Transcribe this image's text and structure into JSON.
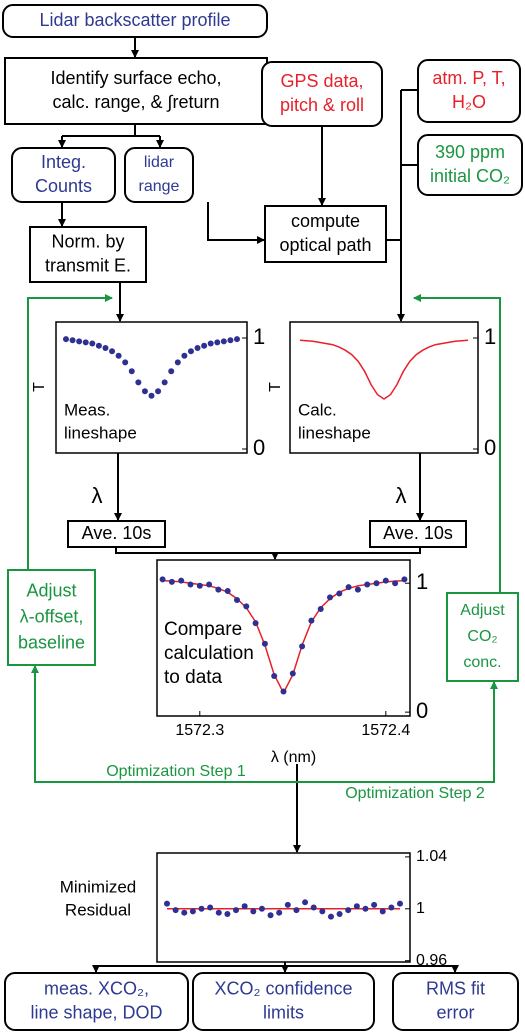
{
  "nodes": [
    {
      "lines": [
        "Lidar backscatter profile"
      ],
      "color": "#2e3a92"
    },
    {
      "lines": [
        "Identify surface echo,",
        "calc. range, & ∫return"
      ],
      "color": "#000000"
    },
    {
      "lines": [
        "GPS data,",
        "pitch & roll"
      ],
      "color": "#e8202a"
    },
    {
      "lines": [
        "atm. P, T,",
        "H₂O"
      ],
      "color": "#e8202a"
    },
    {
      "lines": [
        "390 ppm",
        "initial CO₂"
      ],
      "color": "#1a9641"
    },
    {
      "lines": [
        "Integ.",
        "Counts"
      ],
      "color": "#2e3a92"
    },
    {
      "lines": [
        "lidar",
        "range"
      ],
      "color": "#2e3a92"
    },
    {
      "lines": [
        "compute",
        "optical path"
      ],
      "color": "#000000"
    },
    {
      "lines": [
        "Norm. by",
        "transmit E."
      ],
      "color": "#000000"
    },
    {
      "lines": [
        "Ave. 10s"
      ],
      "color": "#000000"
    },
    {
      "lines": [
        "Ave. 10s"
      ],
      "color": "#000000"
    },
    {
      "lines": [
        "Adjust",
        "λ-offset,",
        "baseline"
      ],
      "color": "#1a9641",
      "border": "#1a9641"
    },
    {
      "lines": [
        "Adjust",
        "CO₂",
        "conc."
      ],
      "color": "#1a9641",
      "border": "#1a9641"
    },
    {
      "lines": [
        "meas. XCO₂,",
        "line shape, DOD"
      ],
      "color": "#2e3a92"
    },
    {
      "lines": [
        "XCO₂ confidence",
        "limits"
      ],
      "color": "#2e3a92"
    },
    {
      "lines": [
        "RMS fit",
        "error"
      ],
      "color": "#2e3a92"
    }
  ],
  "lambda_labels": [
    "λ",
    "λ"
  ],
  "steps": [
    "Optimization Step 1",
    "Optimization Step 2"
  ],
  "plots": [
    {
      "ylabel": "T",
      "caption": [
        "Meas.",
        "lineshape"
      ],
      "ylim": [
        -0.036,
        1.144
      ],
      "yticks": [
        0,
        1
      ],
      "point_color": "#2e3192",
      "points": [
        0.99,
        0.98,
        0.97,
        0.96,
        0.95,
        0.93,
        0.91,
        0.88,
        0.84,
        0.78,
        0.7,
        0.6,
        0.52,
        0.48,
        0.52,
        0.6,
        0.7,
        0.78,
        0.84,
        0.88,
        0.91,
        0.93,
        0.95,
        0.96,
        0.97,
        0.98,
        0.99
      ]
    },
    {
      "ylabel": "T",
      "caption": [
        "Calc.",
        "lineshape"
      ],
      "ylim": [
        -0.036,
        1.144
      ],
      "yticks": [
        0,
        1
      ],
      "curve_color": "#e8202a",
      "curve": [
        0.98,
        0.975,
        0.97,
        0.96,
        0.95,
        0.94,
        0.92,
        0.89,
        0.85,
        0.79,
        0.7,
        0.58,
        0.49,
        0.45,
        0.49,
        0.58,
        0.7,
        0.79,
        0.85,
        0.89,
        0.92,
        0.94,
        0.95,
        0.96,
        0.97,
        0.975,
        0.98
      ]
    },
    {
      "caption": [
        "Compare",
        "calculation",
        "to data"
      ],
      "xlabel": "λ (nm)",
      "xlim": [
        1572.277,
        1572.413
      ],
      "xticks": [
        1572.3,
        1572.4
      ],
      "ylim": [
        -0.03,
        1.18
      ],
      "yticks": [
        0,
        1
      ],
      "point_color": "#2e3192",
      "curve_color": "#e8202a",
      "x": [
        1572.28,
        1572.285,
        1572.29,
        1572.295,
        1572.3,
        1572.305,
        1572.31,
        1572.315,
        1572.32,
        1572.325,
        1572.33,
        1572.335,
        1572.34,
        1572.345,
        1572.35,
        1572.355,
        1572.36,
        1572.365,
        1572.37,
        1572.375,
        1572.38,
        1572.385,
        1572.39,
        1572.395,
        1572.4,
        1572.405,
        1572.41
      ],
      "points": [
        1.03,
        1.01,
        1.02,
        0.99,
        0.98,
        0.99,
        0.95,
        0.94,
        0.87,
        0.82,
        0.69,
        0.53,
        0.28,
        0.16,
        0.3,
        0.51,
        0.71,
        0.8,
        0.89,
        0.92,
        0.97,
        0.95,
        0.99,
        1.0,
        1.02,
        1.0,
        1.03
      ],
      "curve": [
        1.02,
        1.016,
        1.01,
        1.0,
        0.99,
        0.98,
        0.96,
        0.93,
        0.88,
        0.81,
        0.7,
        0.52,
        0.29,
        0.15,
        0.29,
        0.52,
        0.7,
        0.81,
        0.88,
        0.93,
        0.96,
        0.98,
        0.99,
        1.0,
        1.01,
        1.016,
        1.02
      ]
    },
    {
      "caption": [
        "Minimized",
        "Residual"
      ],
      "ylim": [
        0.959,
        1.043
      ],
      "yticks": [
        0.96,
        1,
        1.04
      ],
      "point_color": "#2e3192",
      "curve_color": "#e8202a",
      "points": [
        1.004,
        0.999,
        0.997,
        0.998,
        1.0,
        1.001,
        0.997,
        0.996,
        0.999,
        1.002,
        0.998,
        1.0,
        0.995,
        0.997,
        1.003,
        0.999,
        1.005,
        1.001,
        0.998,
        0.994,
        0.996,
        0.999,
        1.002,
        1.0,
        1.003,
        0.998,
        1.001,
        1.004
      ],
      "curve": [
        1,
        1,
        1,
        1,
        1,
        1,
        1,
        1,
        1,
        1,
        1,
        1,
        1,
        1,
        1,
        1,
        1,
        1,
        1,
        1,
        1,
        1,
        1,
        1,
        1,
        1,
        1,
        1
      ]
    }
  ]
}
